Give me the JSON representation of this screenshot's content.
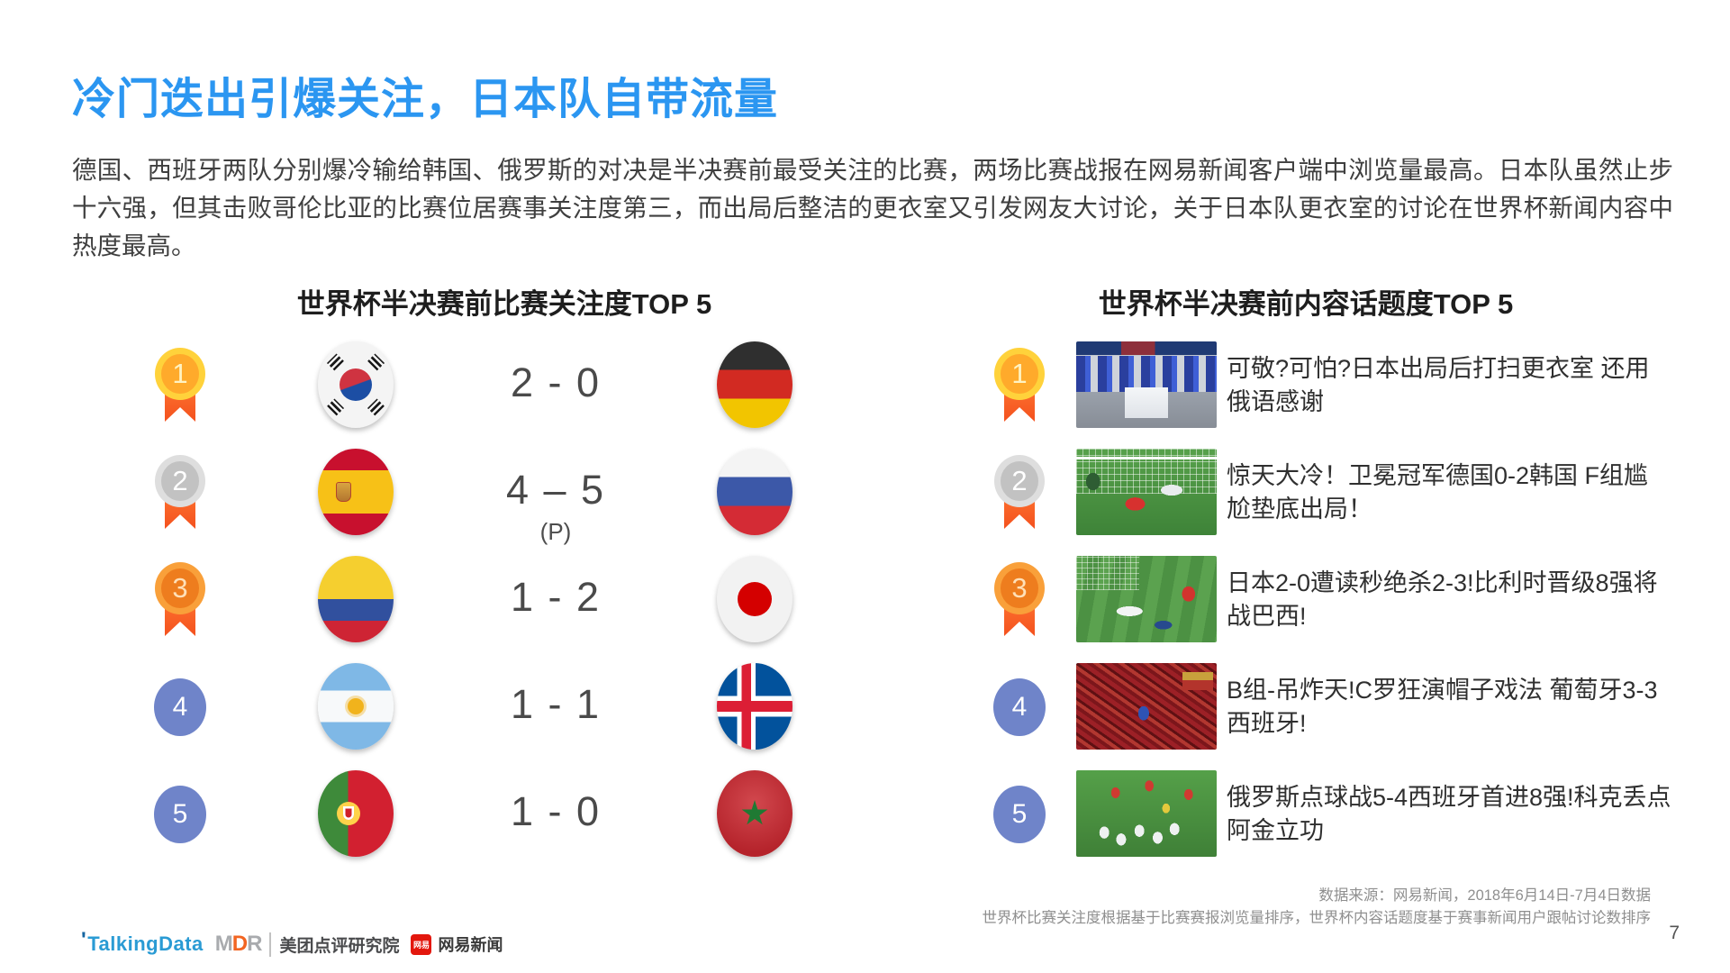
{
  "page": {
    "title": "冷门迭出引爆关注，日本队自带流量",
    "paragraph": "德国、西班牙两队分别爆冷输给韩国、俄罗斯的对决是半决赛前最受关注的比赛，两场比赛战报在网易新闻客户端中浏览量最高。日本队虽然止步十六强，但其击败哥伦比亚的比赛位居赛事关注度第三，而出局后整洁的更衣室又引发网友大讨论，关于日本队更衣室的讨论在世界杯新闻内容中热度最高。",
    "page_number": "7"
  },
  "left_panel": {
    "title": "世界杯半决赛前比赛关注度TOP 5",
    "rows": [
      {
        "rank": "1",
        "team_left": "South Korea",
        "score": "2 - 0",
        "team_right": "Germany"
      },
      {
        "rank": "2",
        "team_left": "Spain",
        "score": "4 – 5",
        "score_note": "(P)",
        "team_right": "Russia"
      },
      {
        "rank": "3",
        "team_left": "Colombia",
        "score": "1 - 2",
        "team_right": "Japan"
      },
      {
        "rank": "4",
        "team_left": "Argentina",
        "score": "1 - 1",
        "team_right": "Iceland"
      },
      {
        "rank": "5",
        "team_left": "Portugal",
        "score": "1 - 0",
        "team_right": "Morocco"
      }
    ]
  },
  "right_panel": {
    "title": "世界杯半决赛前内容话题度TOP 5",
    "items": [
      {
        "rank": "1",
        "thumbnail": "japan-locker-room-photo",
        "headline": "可敬?可怕?日本出局后打扫更衣室 还用俄语感谢"
      },
      {
        "rank": "2",
        "thumbnail": "germany-korea-goal-photo",
        "headline": "惊天大冷！卫冕冠军德国0-2韩国 F组尴尬垫底出局！"
      },
      {
        "rank": "3",
        "thumbnail": "japan-belgium-match-photo",
        "headline": "日本2-0遭读秒绝杀2-3!比利时晋级8强将战巴西!"
      },
      {
        "rank": "4",
        "thumbnail": "portugal-spain-fans-photo",
        "headline": "B组-吊炸天!C罗狂演帽子戏法 葡萄牙3-3西班牙!"
      },
      {
        "rank": "5",
        "thumbnail": "russia-spain-celebration-photo",
        "headline": "俄罗斯点球战5-4西班牙首进8强!科克丢点阿金立功"
      }
    ]
  },
  "footer": {
    "source_line1": "数据来源：网易新闻，2018年6月14日-7月4日数据",
    "source_line2": "世界杯比赛关注度根据基于比赛赛报浏览量排序，世界杯内容话题度基于赛事新闻用户跟帖讨论数排序",
    "logos": {
      "talkingdata": "TalkingData",
      "mdr_m": "M",
      "mdr_d": "D",
      "mdr_r": "R",
      "mdr_suffix": "美团点评研究院",
      "netease_icon": "网易",
      "netease": "网易新闻"
    }
  },
  "colors": {
    "accent_blue": "#2b96f1",
    "medal_gold": "#ffd23b",
    "medal_silver": "#dedede",
    "medal_bronze": "#f9a03a",
    "ribbon_orange": "#f4511e",
    "rank_badge_blue": "#6f84c9"
  }
}
